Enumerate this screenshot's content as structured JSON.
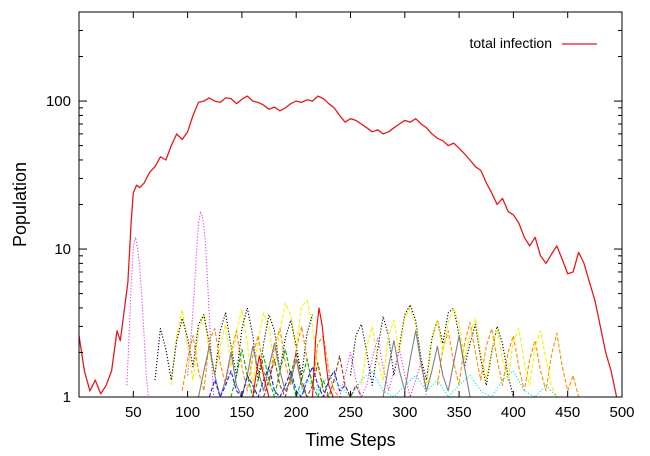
{
  "chart_data": {
    "type": "line",
    "title": "",
    "xlabel": "Time Steps",
    "ylabel": "Population",
    "xlim": [
      0,
      500
    ],
    "ylim": [
      1,
      400
    ],
    "yscale": "log",
    "x_ticks": [
      50,
      100,
      150,
      200,
      250,
      300,
      350,
      400,
      450,
      500
    ],
    "y_ticks": [
      {
        "value": 1,
        "label": "1"
      },
      {
        "value": 10,
        "label": "10"
      },
      {
        "value": 100,
        "label": "100"
      }
    ],
    "grid": false,
    "legend_position": "top-right",
    "series": [
      {
        "name": "total infection",
        "color": "#e41a1c",
        "style": "solid",
        "x": [
          0,
          5,
          10,
          15,
          20,
          25,
          30,
          35,
          38,
          42,
          45,
          48,
          50,
          53,
          56,
          60,
          65,
          70,
          75,
          80,
          85,
          90,
          95,
          100,
          105,
          110,
          115,
          120,
          125,
          130,
          135,
          140,
          145,
          150,
          155,
          160,
          165,
          170,
          175,
          180,
          185,
          190,
          195,
          200,
          205,
          210,
          215,
          220,
          225,
          230,
          235,
          240,
          245,
          250,
          255,
          260,
          265,
          270,
          275,
          280,
          285,
          290,
          295,
          300,
          305,
          310,
          315,
          320,
          325,
          330,
          335,
          340,
          345,
          350,
          355,
          360,
          365,
          370,
          375,
          380,
          385,
          390,
          395,
          400,
          405,
          410,
          415,
          420,
          425,
          430,
          435,
          440,
          445,
          450,
          455,
          460,
          465,
          470,
          475,
          480,
          485,
          490,
          495
        ],
        "values": [
          2.6,
          1.5,
          1.1,
          1.3,
          1.05,
          1.2,
          1.5,
          2.8,
          2.4,
          4.0,
          6.0,
          15,
          24,
          27,
          26,
          28,
          33,
          36,
          42,
          40,
          50,
          60,
          55,
          62,
          80,
          98,
          100,
          105,
          100,
          98,
          105,
          104,
          96,
          103,
          108,
          100,
          98,
          94,
          88,
          91,
          86,
          90,
          96,
          100,
          98,
          102,
          100,
          108,
          104,
          96,
          90,
          80,
          72,
          76,
          74,
          70,
          66,
          62,
          64,
          60,
          62,
          66,
          70,
          74,
          72,
          76,
          70,
          66,
          60,
          56,
          54,
          50,
          52,
          48,
          44,
          40,
          36,
          34,
          28,
          24,
          20,
          22,
          18,
          17,
          15,
          12,
          10.5,
          12,
          9.0,
          8.0,
          9.2,
          10.5,
          8.5,
          6.8,
          7.0,
          9.5,
          8.0,
          6.0,
          4.5,
          3.0,
          2.0,
          1.5,
          1.0
        ]
      },
      {
        "name": "",
        "color": "#e040e0",
        "style": "dotted",
        "x": [
          44,
          46,
          48,
          50,
          52,
          54,
          56,
          58,
          60,
          62,
          64
        ],
        "values": [
          1.2,
          2.5,
          5.5,
          10.5,
          12,
          10,
          7.5,
          4.5,
          2.5,
          1.4,
          1.0
        ]
      },
      {
        "name": "",
        "color": "#e040e0",
        "style": "dotted",
        "x": [
          100,
          104,
          106,
          108,
          110,
          112,
          114,
          116,
          118,
          120,
          122,
          124
        ],
        "values": [
          1.4,
          3.0,
          5.0,
          9.0,
          15,
          18,
          16,
          12,
          7.0,
          3.5,
          1.8,
          1.0
        ]
      },
      {
        "name": "",
        "color": "#f2f200",
        "style": "dashed",
        "x": [
          85,
          90,
          95,
          100,
          105,
          110,
          115,
          120,
          125,
          130,
          135,
          140,
          145,
          150,
          155,
          160,
          165,
          170,
          175,
          180,
          185,
          190,
          195,
          200,
          205,
          210,
          215,
          220,
          225
        ],
        "values": [
          1.2,
          2.6,
          3.9,
          2.2,
          1.3,
          2.8,
          3.6,
          2.0,
          1.4,
          2.2,
          3.1,
          1.6,
          2.8,
          3.9,
          2.3,
          1.2,
          2.4,
          3.7,
          3.0,
          1.6,
          2.8,
          4.3,
          3.6,
          2.2,
          4.1,
          4.5,
          3.0,
          1.6,
          1.1
        ]
      },
      {
        "name": "",
        "color": "#000000",
        "style": "dotted",
        "x": [
          70,
          75,
          80,
          85,
          90,
          95,
          100,
          105,
          110,
          115,
          120,
          125,
          130,
          135,
          140,
          145,
          150,
          155,
          160,
          165,
          170,
          175,
          180,
          185,
          190,
          195,
          200,
          205,
          210,
          215
        ],
        "values": [
          1.3,
          2.9,
          2.1,
          1.3,
          2.4,
          3.4,
          2.5,
          1.6,
          3.1,
          3.6,
          2.3,
          1.4,
          2.8,
          3.7,
          2.2,
          1.4,
          2.9,
          4.0,
          2.6,
          1.3,
          2.3,
          3.6,
          2.8,
          1.5,
          2.5,
          3.3,
          2.2,
          1.4,
          2.7,
          3.6
        ]
      },
      {
        "name": "",
        "color": "#000000",
        "style": "dotted",
        "x": [
          250,
          255,
          260,
          265,
          270,
          275,
          280,
          285,
          290,
          295,
          300,
          305,
          310,
          315,
          320,
          325,
          330,
          335,
          340,
          345,
          350,
          355,
          360,
          365,
          370,
          375,
          380,
          385,
          390,
          395,
          400
        ],
        "values": [
          1.4,
          2.6,
          3.1,
          2.0,
          1.2,
          2.1,
          3.5,
          2.6,
          1.4,
          2.2,
          3.6,
          4.2,
          3.3,
          1.8,
          1.3,
          2.5,
          3.3,
          2.3,
          3.7,
          4.0,
          2.6,
          1.6,
          2.3,
          3.1,
          1.8,
          1.2,
          2.0,
          3.0,
          2.3,
          1.4,
          1.0
        ]
      },
      {
        "name": "",
        "color": "#ff8c00",
        "style": "dashed",
        "x": [
          95,
          100,
          105,
          110,
          115,
          120,
          125,
          130,
          135,
          140,
          145,
          150,
          155,
          160,
          165,
          170,
          175,
          180,
          185,
          190,
          195,
          200,
          205,
          210,
          215,
          220,
          225,
          230,
          235,
          240
        ],
        "values": [
          1.1,
          1.8,
          2.6,
          1.5,
          1.1,
          2.4,
          2.9,
          1.7,
          1.2,
          2.0,
          2.8,
          1.6,
          1.1,
          1.9,
          2.6,
          1.5,
          1.2,
          2.2,
          2.9,
          1.7,
          1.2,
          2.1,
          3.0,
          1.8,
          1.2,
          2.3,
          2.6,
          1.5,
          1.1,
          1.0
        ]
      },
      {
        "name": "",
        "color": "#ff8c00",
        "style": "dashed",
        "x": [
          330,
          335,
          340,
          345,
          350,
          355,
          360,
          365,
          370,
          375,
          380,
          385,
          390,
          395,
          400,
          405,
          410,
          415,
          420,
          425,
          430,
          435,
          440,
          445,
          450,
          455,
          460
        ],
        "values": [
          1.2,
          2.1,
          2.8,
          1.7,
          1.2,
          2.3,
          3.2,
          2.0,
          1.3,
          2.2,
          2.9,
          1.8,
          1.2,
          2.0,
          2.6,
          1.6,
          1.1,
          1.8,
          2.4,
          1.5,
          1.1,
          1.9,
          2.7,
          1.6,
          1.1,
          1.4,
          1.0
        ]
      },
      {
        "name": "",
        "color": "#f2f200",
        "style": "dashed",
        "x": [
          260,
          265,
          270,
          275,
          280,
          285,
          290,
          295,
          300,
          305,
          310,
          315,
          320,
          325,
          330,
          335,
          340,
          345,
          350,
          355,
          360,
          365,
          370,
          375,
          380,
          385,
          390,
          395,
          400,
          405,
          410,
          415,
          420,
          425,
          430,
          435,
          440
        ],
        "values": [
          1.2,
          2.2,
          3.0,
          1.8,
          1.3,
          2.6,
          3.3,
          2.0,
          3.4,
          4.0,
          3.0,
          1.6,
          1.2,
          2.4,
          3.3,
          2.0,
          3.2,
          4.0,
          3.1,
          1.8,
          2.6,
          3.4,
          2.0,
          1.3,
          2.1,
          2.9,
          1.8,
          1.3,
          2.4,
          2.9,
          1.7,
          1.2,
          2.2,
          2.8,
          1.8,
          1.2,
          1.0
        ]
      },
      {
        "name": "",
        "color": "#808080",
        "style": "solid",
        "x": [
          110,
          115,
          120,
          125,
          130,
          135,
          140,
          145,
          150,
          155,
          160,
          165,
          170,
          175,
          180,
          185,
          190,
          195,
          200,
          205,
          210
        ],
        "values": [
          1.0,
          1.5,
          2.2,
          1.4,
          1.0,
          1.3,
          2.0,
          1.2,
          1.0,
          1.4,
          2.2,
          1.5,
          1.1,
          1.6,
          2.3,
          1.5,
          1.1,
          1.3,
          1.8,
          1.2,
          1.0
        ]
      },
      {
        "name": "",
        "color": "#808080",
        "style": "solid",
        "x": [
          280,
          285,
          290,
          295,
          300,
          305,
          310,
          315,
          320,
          325,
          330,
          335,
          340,
          345,
          350,
          355,
          360
        ],
        "values": [
          1.0,
          1.6,
          2.4,
          1.5,
          1.1,
          1.8,
          2.8,
          1.7,
          1.1,
          1.5,
          2.2,
          1.4,
          1.1,
          1.7,
          2.6,
          1.6,
          1.0
        ]
      },
      {
        "name": "",
        "color": "#00b000",
        "style": "dashed",
        "x": [
          140,
          145,
          150,
          155,
          160,
          165,
          170,
          175,
          180,
          185,
          190,
          195,
          200,
          205,
          210,
          215,
          220,
          225,
          230
        ],
        "values": [
          1.0,
          1.4,
          2.1,
          1.4,
          1.0,
          1.3,
          1.9,
          1.3,
          1.0,
          1.5,
          2.1,
          1.4,
          1.0,
          1.3,
          1.8,
          1.2,
          1.0,
          1.3,
          1.0
        ]
      },
      {
        "name": "",
        "color": "#1a1aff",
        "style": "dashed",
        "x": [
          120,
          125,
          130,
          135,
          140,
          145,
          150,
          155,
          160,
          165,
          170,
          175,
          180,
          185,
          190,
          195,
          200,
          205,
          210,
          215,
          220,
          225,
          230,
          235,
          240,
          245,
          250
        ],
        "values": [
          1.0,
          1.3,
          1.0,
          1.2,
          1.5,
          1.1,
          1.0,
          1.4,
          1.2,
          1.0,
          1.3,
          1.6,
          1.1,
          1.0,
          1.2,
          1.5,
          1.1,
          1.0,
          1.3,
          1.6,
          1.2,
          1.0,
          1.3,
          1.5,
          1.1,
          1.2,
          1.0
        ]
      },
      {
        "name": "",
        "color": "#00e5e5",
        "style": "dotted",
        "x": [
          200,
          210,
          220,
          230,
          240,
          250,
          260,
          270,
          280,
          290,
          300,
          310,
          320,
          330,
          340,
          350,
          360,
          370,
          380,
          390,
          400,
          410,
          420,
          430,
          440
        ],
        "values": [
          1.0,
          1.3,
          1.1,
          1.4,
          1.2,
          1.0,
          1.3,
          1.5,
          1.1,
          1.0,
          1.2,
          1.4,
          1.1,
          1.3,
          1.0,
          1.2,
          1.4,
          1.1,
          1.0,
          1.3,
          1.5,
          1.1,
          1.0,
          1.2,
          1.0
        ]
      },
      {
        "name": "",
        "color": "#ff0000",
        "style": "solid",
        "x": [
          160,
          163,
          166,
          169,
          172,
          175,
          215,
          218,
          221,
          224,
          227,
          230,
          234
        ],
        "values": [
          1.0,
          1.4,
          1.9,
          1.5,
          1.2,
          1.0,
          1.0,
          2.5,
          4.0,
          3.0,
          1.8,
          1.2,
          1.0
        ]
      },
      {
        "name": "",
        "color": "#e040e0",
        "style": "dotted",
        "x": [
          240,
          245,
          250,
          255,
          260,
          265,
          270,
          275,
          280,
          285,
          290,
          295,
          300,
          305,
          310,
          315,
          320
        ],
        "values": [
          1.0,
          1.4,
          2.0,
          1.3,
          1.0,
          1.2,
          1.8,
          2.5,
          1.6,
          1.1,
          1.5,
          2.1,
          1.4,
          1.0,
          1.3,
          1.7,
          1.0
        ]
      },
      {
        "name": "",
        "color": "#8b4513",
        "style": "dashed",
        "x": [
          170,
          175,
          180,
          185,
          190,
          195,
          200,
          205,
          210,
          215,
          220,
          225,
          230,
          235,
          240,
          245,
          250,
          255,
          260
        ],
        "values": [
          1.0,
          1.3,
          1.8,
          1.2,
          1.0,
          1.4,
          2.0,
          1.3,
          1.0,
          1.2,
          1.7,
          1.1,
          1.0,
          1.3,
          1.9,
          1.2,
          1.0,
          1.2,
          1.0
        ]
      }
    ]
  }
}
